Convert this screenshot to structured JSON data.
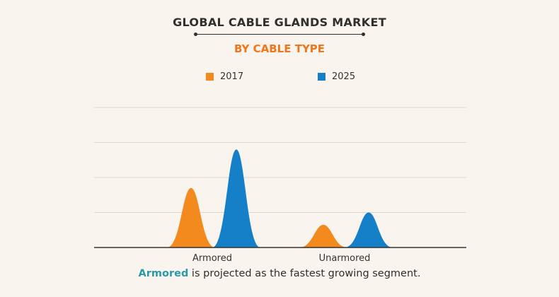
{
  "colors": {
    "series_2017": "#f28a1e",
    "series_2025": "#1580c7",
    "accent_subtitle": "#f0761b",
    "highlight": "#2a9aab"
  },
  "chart_data": {
    "type": "area",
    "title": "GLOBAL CABLE GLANDS MARKET",
    "subtitle": "BY CABLE TYPE",
    "categories": [
      "Armored",
      "Unarmored"
    ],
    "series": [
      {
        "name": "2017",
        "values": [
          1.7,
          0.65
        ]
      },
      {
        "name": "2025",
        "values": [
          2.8,
          1.0
        ]
      }
    ],
    "ylim": [
      0,
      4
    ],
    "grid": true,
    "legend": "top-center",
    "xlabel": "",
    "ylabel": ""
  },
  "caption": {
    "highlight": "Armored",
    "rest": " is projected as the fastest growing segment."
  }
}
